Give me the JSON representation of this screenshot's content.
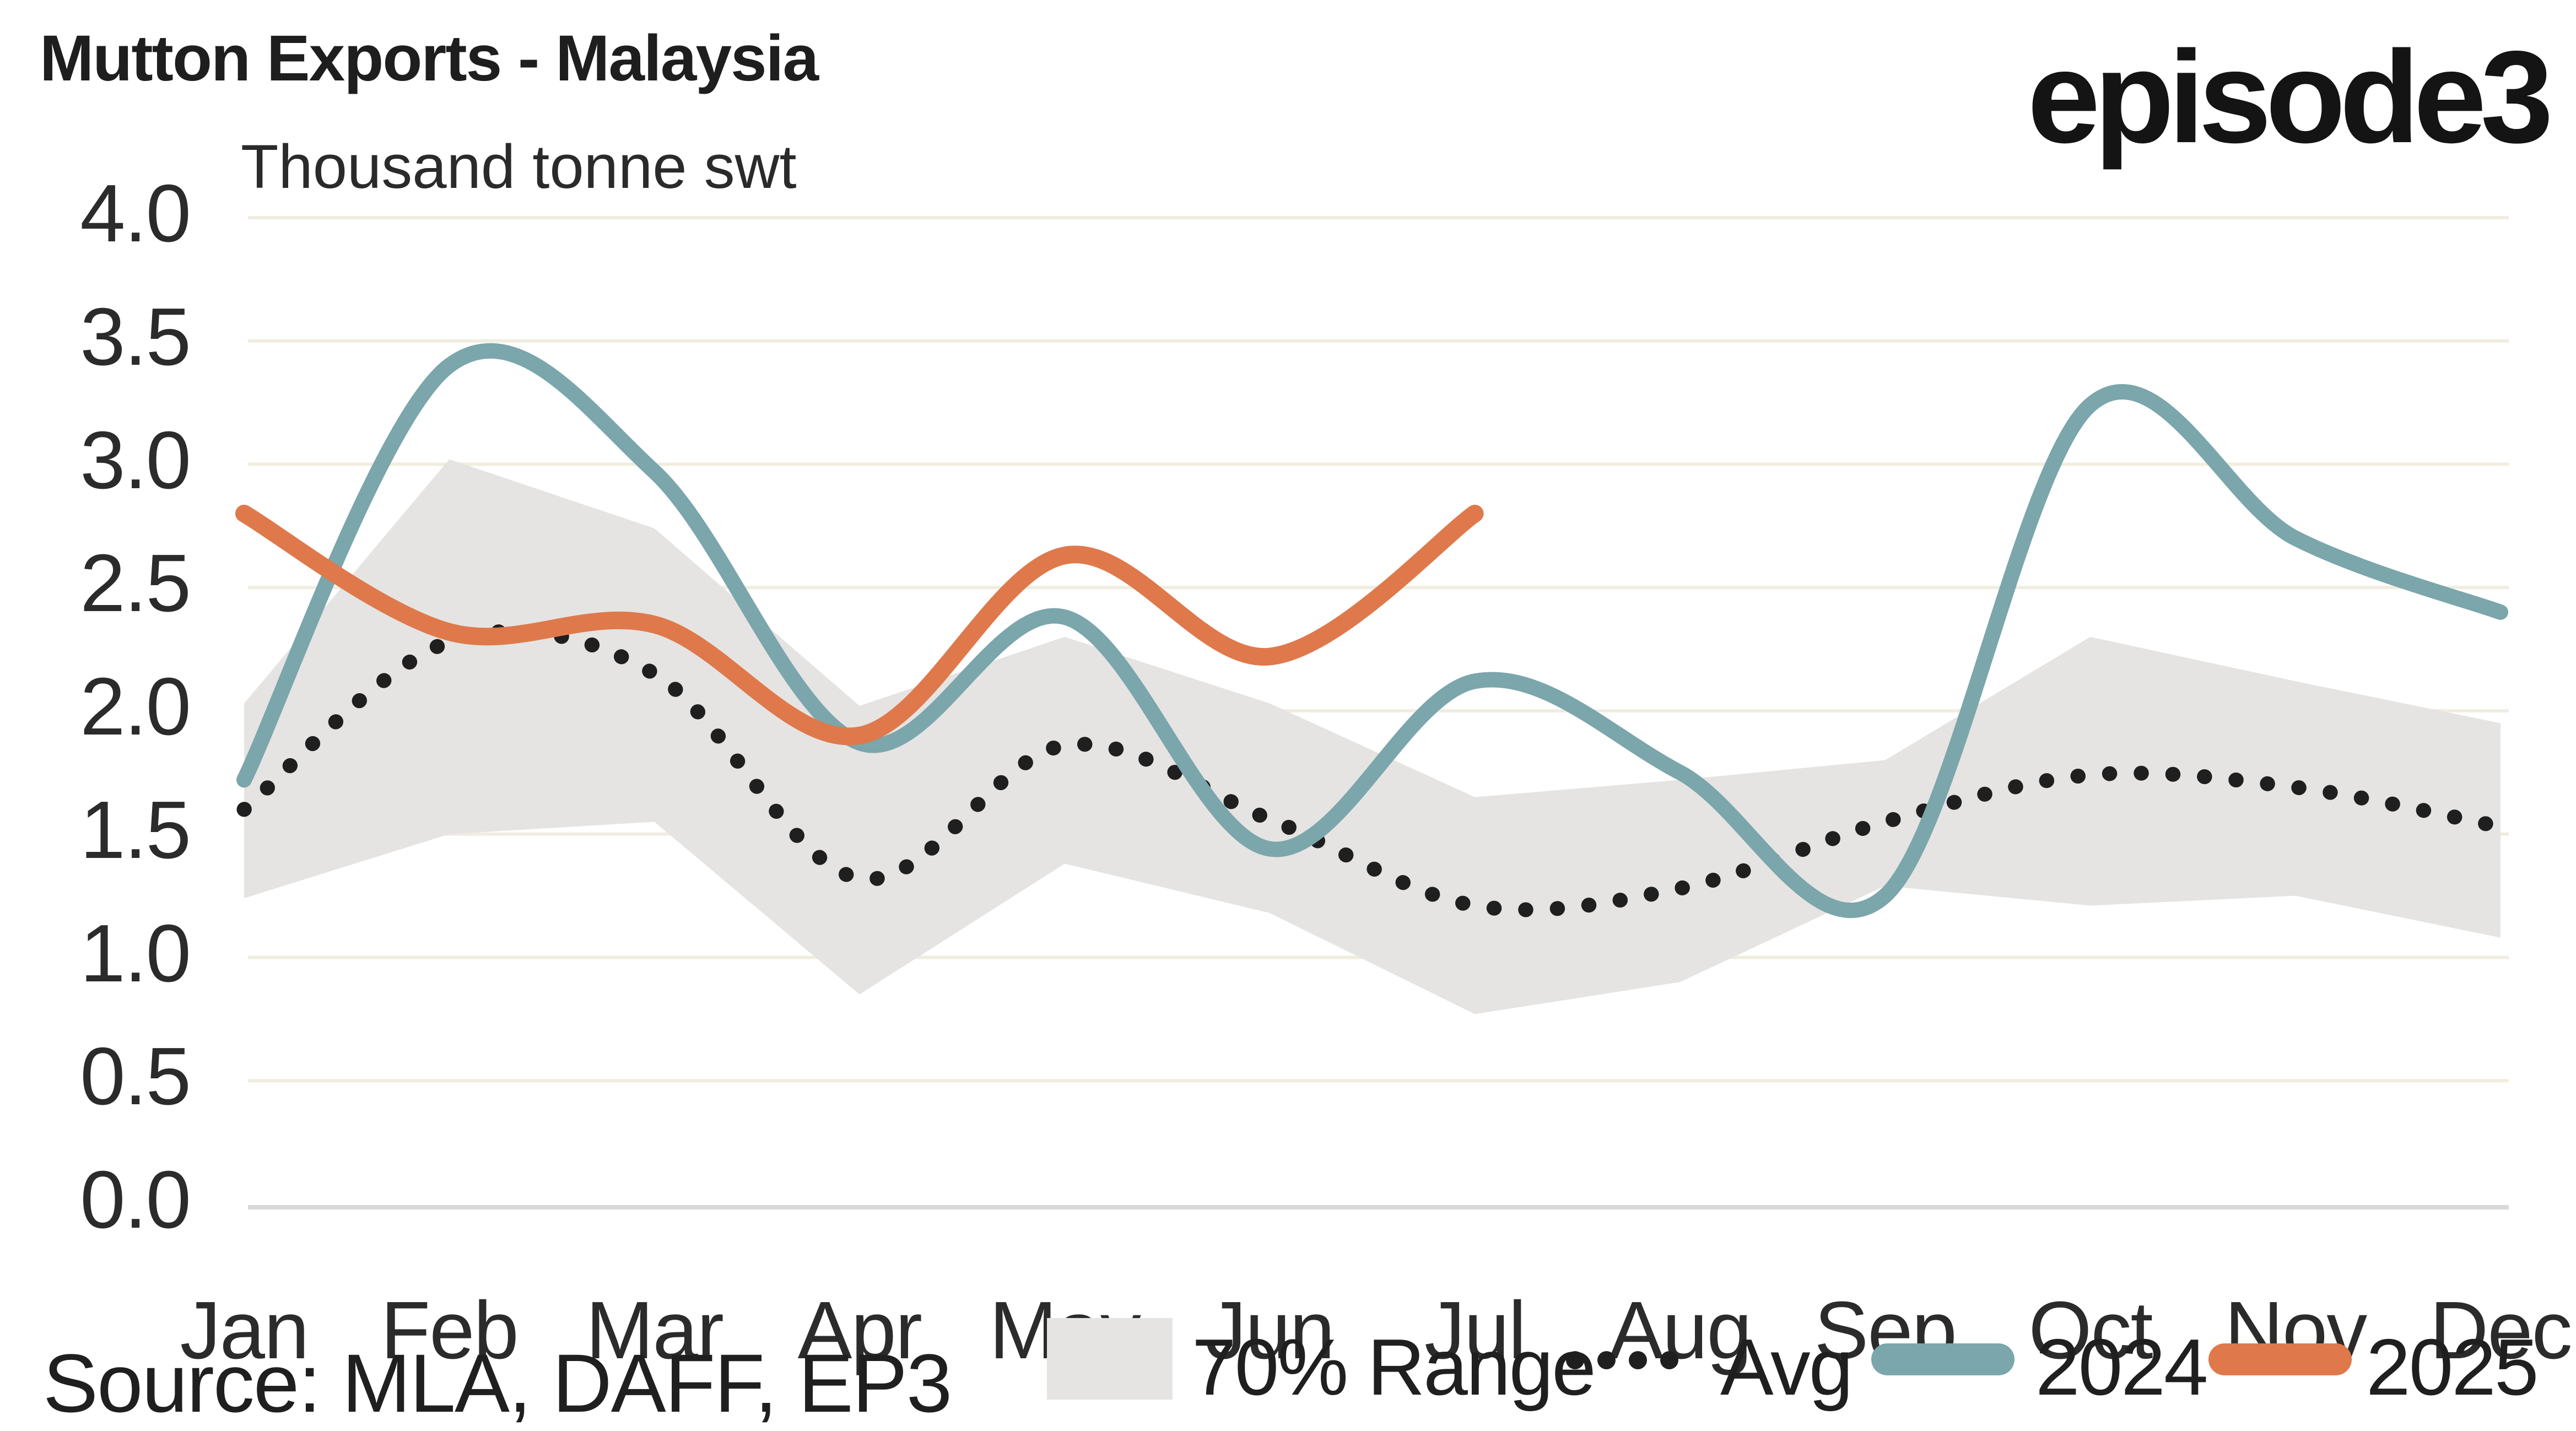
{
  "header": {
    "title": "Mutton Exports - Malaysia",
    "subtitle": "Thousand tonne swt",
    "brand_logo": "episode3"
  },
  "footer": {
    "source": "Source: MLA, DAFF, EP3"
  },
  "legend": {
    "position": "bottom-center",
    "items": [
      {
        "label": "70% Range",
        "swatch": "band",
        "color": "#E5E4E2"
      },
      {
        "label": "Avg",
        "swatch": "dotted",
        "color": "#1F1F1F"
      },
      {
        "label": "2024",
        "swatch": "line",
        "color": "#7BA6AB"
      },
      {
        "label": "2025",
        "swatch": "line",
        "color": "#DF794B"
      }
    ]
  },
  "chart_data": {
    "type": "line",
    "title": "Mutton Exports - Malaysia",
    "ylabel": "Thousand tonne swt",
    "categories": [
      "Jan",
      "Feb",
      "Mar",
      "Apr",
      "May",
      "Jun",
      "Jul",
      "Aug",
      "Sep",
      "Oct",
      "Nov",
      "Dec"
    ],
    "ylim": [
      0.0,
      4.0
    ],
    "ytick_labels": [
      "0.0",
      "0.5",
      "1.0",
      "1.5",
      "2.0",
      "2.5",
      "3.0",
      "3.5",
      "4.0"
    ],
    "grid": "horizontal",
    "gridline_color": "#F0EDE0",
    "axisline_color": "#D9D9D9",
    "legend_position": "bottom",
    "series": [
      {
        "name": "70% Range",
        "type": "band",
        "color": "#E5E4E2",
        "upper": [
          2.03,
          3.02,
          2.74,
          2.02,
          2.3,
          2.03,
          1.65,
          1.72,
          1.8,
          2.3,
          2.12,
          1.95
        ],
        "lower": [
          1.24,
          1.5,
          1.55,
          0.85,
          1.38,
          1.18,
          0.77,
          0.9,
          1.29,
          1.21,
          1.25,
          1.08
        ]
      },
      {
        "name": "Avg",
        "type": "line",
        "style": "dotted",
        "color": "#1F1F1F",
        "values": [
          1.6,
          2.28,
          2.15,
          1.32,
          1.86,
          1.56,
          1.21,
          1.28,
          1.55,
          1.74,
          1.69,
          1.53
        ]
      },
      {
        "name": "2024",
        "type": "line",
        "style": "solid",
        "color": "#7BA6AB",
        "values": [
          1.72,
          3.4,
          2.97,
          1.87,
          2.38,
          1.44,
          2.12,
          1.75,
          1.25,
          3.24,
          2.7,
          2.4
        ]
      },
      {
        "name": "2025",
        "type": "line",
        "style": "solid",
        "color": "#DF794B",
        "values": [
          2.8,
          2.32,
          2.35,
          1.9,
          2.63,
          2.22,
          2.8,
          null,
          null,
          null,
          null,
          null
        ]
      }
    ]
  }
}
